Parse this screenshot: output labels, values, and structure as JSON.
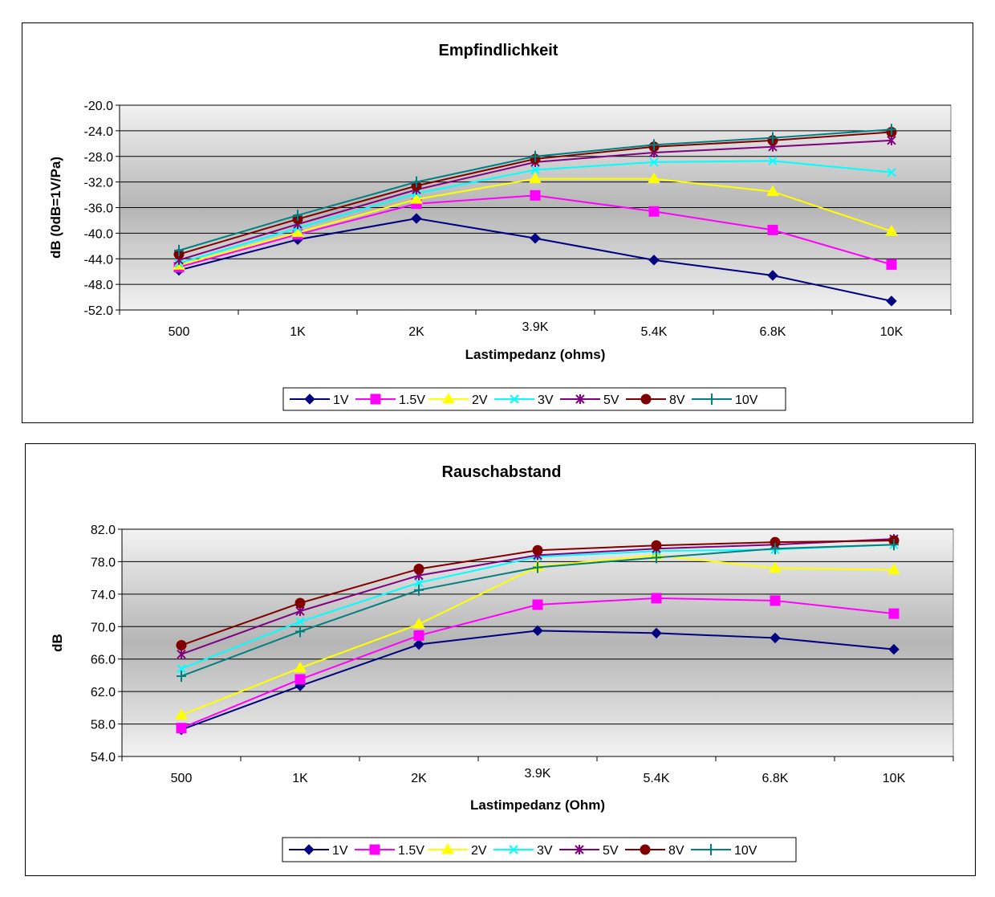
{
  "chart_data": [
    {
      "type": "line",
      "title": "Empfindlichkeit",
      "xlabel": "Lastimpedanz (ohms)",
      "ylabel": "dB (0dB=1V/Pa)",
      "categories": [
        "500",
        "1K",
        "2K",
        "3.9K",
        "5.4K",
        "6.8K",
        "10K"
      ],
      "ylim": [
        -52.0,
        -20.0
      ],
      "yticks": [
        "-20.0",
        "-24.0",
        "-28.0",
        "-32.0",
        "-36.0",
        "-40.0",
        "-44.0",
        "-48.0",
        "-52.0"
      ],
      "grid": true,
      "legend": "bottom",
      "series": [
        {
          "name": "1V",
          "color": "#000080",
          "marker": "diamond",
          "values": [
            -45.8,
            -41.0,
            -37.7,
            -40.8,
            -44.2,
            -46.6,
            -50.6
          ]
        },
        {
          "name": "1.5V",
          "color": "#FF00FF",
          "marker": "square",
          "values": [
            -45.3,
            -40.2,
            -35.4,
            -34.1,
            -36.6,
            -39.5,
            -44.9
          ]
        },
        {
          "name": "2V",
          "color": "#FFFF00",
          "marker": "triangle",
          "values": [
            -45.0,
            -39.9,
            -34.7,
            -31.5,
            -31.5,
            -33.5,
            -39.7
          ]
        },
        {
          "name": "3V",
          "color": "#00FFFF",
          "marker": "x",
          "values": [
            -44.7,
            -39.2,
            -33.8,
            -30.1,
            -28.9,
            -28.7,
            -30.5
          ]
        },
        {
          "name": "5V",
          "color": "#800080",
          "marker": "star",
          "values": [
            -44.2,
            -38.6,
            -33.2,
            -28.9,
            -27.4,
            -26.5,
            -25.5
          ]
        },
        {
          "name": "8V",
          "color": "#800000",
          "marker": "circle",
          "values": [
            -43.3,
            -37.8,
            -32.6,
            -28.4,
            -26.5,
            -25.5,
            -24.2
          ]
        },
        {
          "name": "10V",
          "color": "#008080",
          "marker": "plus",
          "values": [
            -42.7,
            -37.2,
            -32.0,
            -28.0,
            -26.2,
            -25.1,
            -23.8
          ]
        }
      ]
    },
    {
      "type": "line",
      "title": "Rauschabstand",
      "xlabel": "Lastimpedanz (Ohm)",
      "ylabel": "dB",
      "categories": [
        "500",
        "1K",
        "2K",
        "3.9K",
        "5.4K",
        "6.8K",
        "10K"
      ],
      "ylim": [
        54.0,
        82.0
      ],
      "yticks": [
        "82.0",
        "78.0",
        "74.0",
        "70.0",
        "66.0",
        "62.0",
        "58.0",
        "54.0"
      ],
      "grid": true,
      "legend": "bottom",
      "series": [
        {
          "name": "1V",
          "color": "#000080",
          "marker": "diamond",
          "values": [
            57.3,
            62.7,
            67.8,
            69.5,
            69.2,
            68.6,
            67.2
          ]
        },
        {
          "name": "1.5V",
          "color": "#FF00FF",
          "marker": "square",
          "values": [
            57.5,
            63.5,
            68.9,
            72.7,
            73.5,
            73.2,
            71.6
          ]
        },
        {
          "name": "2V",
          "color": "#FFFF00",
          "marker": "triangle",
          "values": [
            59.1,
            64.9,
            70.3,
            77.4,
            78.8,
            77.2,
            77.0
          ]
        },
        {
          "name": "3V",
          "color": "#00FFFF",
          "marker": "x",
          "values": [
            64.8,
            70.6,
            75.4,
            78.6,
            79.3,
            79.5,
            80.1
          ]
        },
        {
          "name": "5V",
          "color": "#800080",
          "marker": "star",
          "values": [
            66.6,
            71.9,
            76.3,
            78.8,
            79.6,
            80.1,
            80.8
          ]
        },
        {
          "name": "8V",
          "color": "#800000",
          "marker": "circle",
          "values": [
            67.7,
            72.9,
            77.1,
            79.4,
            80.0,
            80.4,
            80.6
          ]
        },
        {
          "name": "10V",
          "color": "#008080",
          "marker": "plus",
          "values": [
            63.9,
            69.4,
            74.5,
            77.3,
            78.5,
            79.6,
            80.1
          ]
        }
      ]
    }
  ]
}
